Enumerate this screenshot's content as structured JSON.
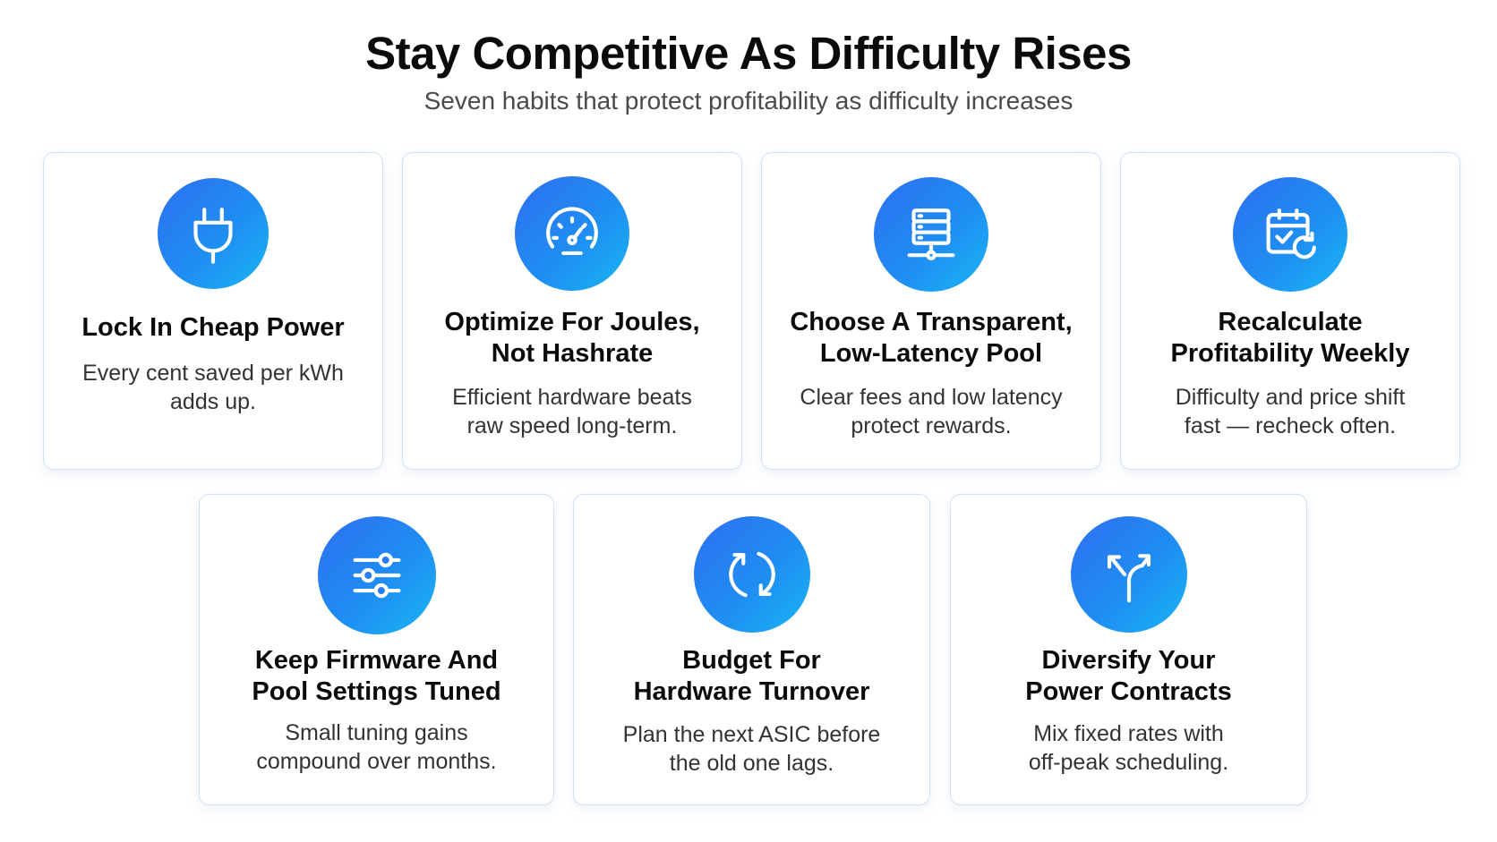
{
  "header": {
    "title": "Stay Competitive As Difficulty Rises",
    "subtitle": "Seven habits that protect profitability as difficulty increases"
  },
  "accent": {
    "gradient_start": "#2f6ff0",
    "gradient_end": "#19b6f4",
    "card_border": "#cfe1f5"
  },
  "cards": [
    {
      "icon": "power-plug-icon",
      "title_line1": "Lock In Cheap Power",
      "title_line2": "",
      "desc_line1": "Every cent saved per kWh",
      "desc_line2": "adds up."
    },
    {
      "icon": "speedometer-icon",
      "title_line1": "Optimize For Joules,",
      "title_line2": "Not Hashrate",
      "desc_line1": "Efficient hardware beats",
      "desc_line2": "raw speed long-term."
    },
    {
      "icon": "server-network-icon",
      "title_line1": "Choose A Transparent,",
      "title_line2": "Low-Latency Pool",
      "desc_line1": "Clear fees and low latency",
      "desc_line2": "protect rewards."
    },
    {
      "icon": "calendar-refresh-icon",
      "title_line1": "Recalculate",
      "title_line2": "Profitability Weekly",
      "desc_line1": "Difficulty and price shift",
      "desc_line2": "fast — recheck often."
    },
    {
      "icon": "sliders-icon",
      "title_line1": "Keep Firmware And",
      "title_line2": "Pool Settings Tuned",
      "desc_line1": "Small tuning gains",
      "desc_line2": "compound over months."
    },
    {
      "icon": "refresh-cycle-icon",
      "title_line1": "Budget For",
      "title_line2": "Hardware Turnover",
      "desc_line1": "Plan the next ASIC before",
      "desc_line2": "the old one lags."
    },
    {
      "icon": "split-arrows-icon",
      "title_line1": "Diversify Your",
      "title_line2": "Power Contracts",
      "desc_line1": "Mix fixed rates with",
      "desc_line2": "off-peak scheduling."
    }
  ]
}
